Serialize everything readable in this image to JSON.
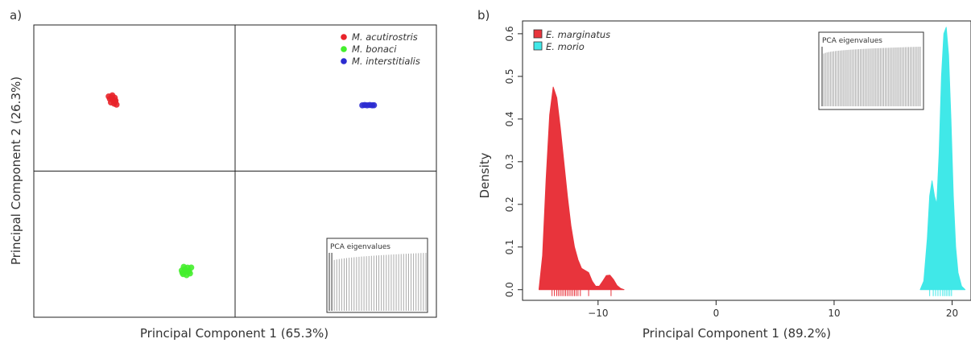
{
  "chart_data": [
    {
      "panel_label": "a)",
      "type": "scatter",
      "xlabel": "Principal Component 1 (65.3%)",
      "ylabel": "Principal Component 2 (26.3%)",
      "xlim": [
        -1,
        1
      ],
      "ylim": [
        -1,
        1
      ],
      "axis_ticks": false,
      "reference_lines": {
        "x": 0,
        "y": 0
      },
      "legend": {
        "placement": "top-right",
        "entries": [
          {
            "label": "M. acutirostris",
            "color": "#e8232a"
          },
          {
            "label": "M. bonaci",
            "color": "#44ee2c"
          },
          {
            "label": "M. interstitialis",
            "color": "#2b2bd0"
          }
        ]
      },
      "series": [
        {
          "name": "M. acutirostris",
          "color": "#e8232a",
          "points": [
            [
              -0.628,
              0.511
            ],
            [
              -0.613,
              0.505
            ],
            [
              -0.598,
              0.502
            ],
            [
              -0.622,
              0.494
            ],
            [
              -0.606,
              0.488
            ],
            [
              -0.594,
              0.482
            ],
            [
              -0.617,
              0.47
            ],
            [
              -0.601,
              0.462
            ],
            [
              -0.589,
              0.455
            ],
            [
              -0.61,
              0.518
            ],
            [
              -0.596,
              0.475
            ]
          ]
        },
        {
          "name": "M. bonaci",
          "color": "#44ee2c",
          "points": [
            [
              -0.255,
              -0.655
            ],
            [
              -0.236,
              -0.661
            ],
            [
              -0.218,
              -0.66
            ],
            [
              -0.265,
              -0.68
            ],
            [
              -0.247,
              -0.688
            ],
            [
              -0.229,
              -0.684
            ],
            [
              -0.258,
              -0.705
            ],
            [
              -0.241,
              -0.712
            ],
            [
              -0.224,
              -0.7
            ],
            [
              -0.249,
              -0.672
            ],
            [
              -0.262,
              -0.695
            ],
            [
              -0.235,
              -0.69
            ]
          ]
        },
        {
          "name": "M. interstitialis",
          "color": "#2b2bd0",
          "points": [
            [
              0.632,
              0.45
            ],
            [
              0.644,
              0.452
            ],
            [
              0.656,
              0.45
            ],
            [
              0.669,
              0.452
            ],
            [
              0.681,
              0.45
            ],
            [
              0.69,
              0.451
            ]
          ]
        }
      ],
      "inset": {
        "title": "PCA eigenvalues",
        "type": "bar",
        "bar_count": 40,
        "highlighted_bars": 2
      }
    },
    {
      "panel_label": "b)",
      "type": "area",
      "xlabel": "Principal Component 1 (89.2%)",
      "ylabel": "Density",
      "xlim": [
        -16.4,
        21.6
      ],
      "ylim": [
        -0.025,
        0.63
      ],
      "xticks": [
        -10,
        0,
        10,
        20
      ],
      "xtick_labels": [
        "−10",
        "0",
        "10",
        "20"
      ],
      "yticks": [
        0.0,
        0.1,
        0.2,
        0.3,
        0.4,
        0.5,
        0.6
      ],
      "ytick_labels": [
        "0.0",
        "0.1",
        "0.2",
        "0.3",
        "0.4",
        "0.5",
        "0.6"
      ],
      "legend": {
        "placement": "top-left",
        "entries": [
          {
            "label": "E. marginatus",
            "color": "#e8343c"
          },
          {
            "label": "E. morio",
            "color": "#40e8e8"
          }
        ]
      },
      "series": [
        {
          "name": "E. marginatus",
          "color": "#e8343c",
          "x": [
            -15.0,
            -14.7,
            -14.4,
            -14.1,
            -13.8,
            -13.5,
            -13.2,
            -12.9,
            -12.6,
            -12.3,
            -12.0,
            -11.7,
            -11.4,
            -11.1,
            -10.8,
            -10.5,
            -10.2,
            -9.9,
            -9.6,
            -9.3,
            -9.0,
            -8.7,
            -8.4,
            -8.1,
            -7.8
          ],
          "y": [
            0.002,
            0.08,
            0.26,
            0.41,
            0.475,
            0.45,
            0.38,
            0.3,
            0.22,
            0.15,
            0.1,
            0.07,
            0.05,
            0.045,
            0.04,
            0.02,
            0.008,
            0.008,
            0.02,
            0.033,
            0.034,
            0.024,
            0.01,
            0.003,
            0.0
          ]
        },
        {
          "name": "E. morio",
          "color": "#40e8e8",
          "x": [
            17.3,
            17.6,
            17.9,
            18.1,
            18.3,
            18.5,
            18.7,
            18.9,
            19.1,
            19.3,
            19.5,
            19.7,
            19.9,
            20.1,
            20.3,
            20.5,
            20.8,
            21.1
          ],
          "y": [
            0.0,
            0.02,
            0.12,
            0.22,
            0.255,
            0.22,
            0.2,
            0.32,
            0.5,
            0.6,
            0.615,
            0.55,
            0.4,
            0.22,
            0.1,
            0.04,
            0.008,
            0.0
          ]
        }
      ],
      "rug": {
        "E. marginatus": [
          -13.9,
          -13.7,
          -13.5,
          -13.35,
          -13.2,
          -13.05,
          -12.9,
          -12.75,
          -12.6,
          -12.45,
          -12.3,
          -12.15,
          -12.0,
          -11.85,
          -11.7,
          -11.5,
          -10.8,
          -8.9
        ],
        "E. morio": [
          18.1,
          18.4,
          18.6,
          18.8,
          19.0,
          19.2,
          19.35,
          19.5,
          19.65,
          19.8,
          19.95
        ]
      },
      "inset": {
        "title": "PCA eigenvalues",
        "type": "bar",
        "bar_count": 60,
        "highlighted_bars": 1
      }
    }
  ]
}
